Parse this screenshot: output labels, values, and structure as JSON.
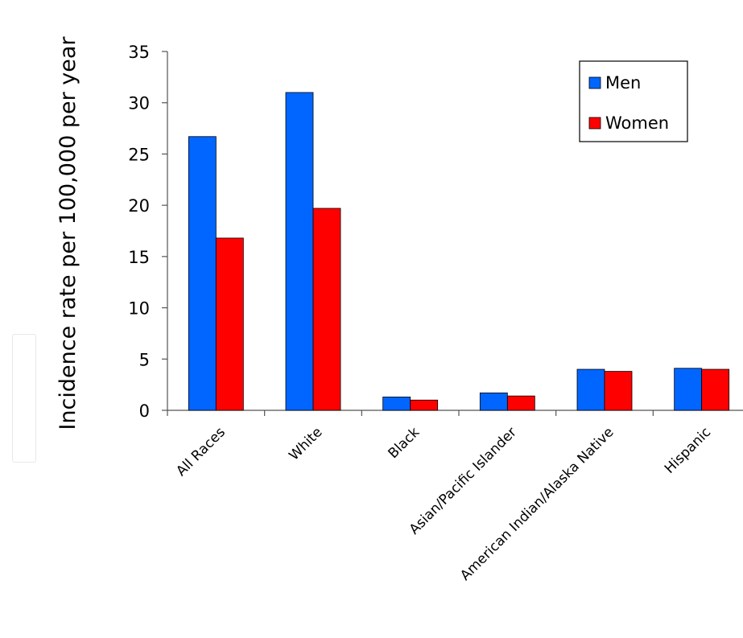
{
  "chart_data": {
    "type": "bar",
    "title": "",
    "xlabel": "",
    "ylabel": "Incidence rate per 100,000 per year",
    "ylim": [
      0,
      35
    ],
    "yticks": [
      0,
      5,
      10,
      15,
      20,
      25,
      30,
      35
    ],
    "categories": [
      "All Races",
      "White",
      "Black",
      "Asian/Pacific Islander",
      "American Indian/Alaska Native",
      "Hispanic"
    ],
    "series": [
      {
        "name": "Men",
        "color": "#0066FF",
        "values": [
          26.7,
          31.0,
          1.3,
          1.7,
          4.0,
          4.1
        ]
      },
      {
        "name": "Women",
        "color": "#FF0000",
        "values": [
          16.8,
          19.7,
          1.0,
          1.4,
          3.8,
          4.0
        ]
      }
    ],
    "legend": "top-right",
    "grid": false
  }
}
